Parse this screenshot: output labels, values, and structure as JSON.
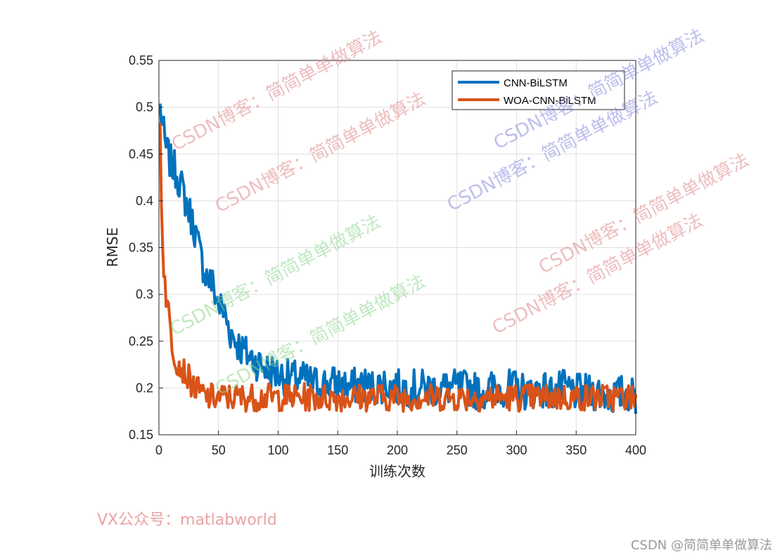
{
  "chart_data": {
    "type": "line",
    "xlabel": "训练次数",
    "ylabel": "RMSE",
    "xlim": [
      0,
      400
    ],
    "ylim": [
      0.15,
      0.55
    ],
    "xticks": [
      "0",
      "50",
      "100",
      "150",
      "200",
      "250",
      "300",
      "350",
      "400"
    ],
    "yticks": [
      "0.15",
      "0.2",
      "0.25",
      "0.3",
      "0.35",
      "0.4",
      "0.45",
      "0.5",
      "0.55"
    ],
    "grid": true,
    "legend_position": "top-right",
    "series": [
      {
        "name": "CNN-BiLSTM",
        "color": "#0072bd",
        "x": [
          1,
          5,
          10,
          15,
          20,
          25,
          30,
          35,
          40,
          45,
          50,
          55,
          60,
          65,
          70,
          75,
          80,
          90,
          100,
          110,
          120,
          130,
          140,
          150,
          160,
          170,
          180,
          190,
          200,
          210,
          220,
          230,
          240,
          250,
          260,
          270,
          280,
          290,
          300,
          310,
          320,
          330,
          340,
          350,
          360,
          370,
          380,
          390,
          400
        ],
        "y": [
          0.5,
          0.46,
          0.44,
          0.43,
          0.41,
          0.39,
          0.37,
          0.34,
          0.32,
          0.31,
          0.29,
          0.28,
          0.26,
          0.25,
          0.24,
          0.235,
          0.23,
          0.22,
          0.215,
          0.21,
          0.21,
          0.205,
          0.205,
          0.205,
          0.2,
          0.205,
          0.2,
          0.205,
          0.2,
          0.2,
          0.2,
          0.2,
          0.2,
          0.2,
          0.2,
          0.195,
          0.2,
          0.2,
          0.2,
          0.195,
          0.2,
          0.195,
          0.2,
          0.195,
          0.195,
          0.195,
          0.19,
          0.195,
          0.19
        ]
      },
      {
        "name": "WOA-CNN-BiLSTM",
        "color": "#d95319",
        "x": [
          1,
          2,
          4,
          6,
          8,
          10,
          12,
          15,
          20,
          25,
          30,
          35,
          40,
          50,
          60,
          70,
          80,
          90,
          100,
          120,
          140,
          160,
          180,
          200,
          220,
          240,
          260,
          280,
          300,
          320,
          340,
          360,
          380,
          400
        ],
        "y": [
          0.48,
          0.4,
          0.33,
          0.3,
          0.28,
          0.26,
          0.24,
          0.23,
          0.22,
          0.21,
          0.2,
          0.195,
          0.19,
          0.19,
          0.19,
          0.19,
          0.19,
          0.19,
          0.19,
          0.19,
          0.19,
          0.19,
          0.19,
          0.19,
          0.19,
          0.19,
          0.19,
          0.19,
          0.19,
          0.19,
          0.19,
          0.19,
          0.19,
          0.19
        ]
      }
    ]
  },
  "watermarks": [
    "CSDN博客：简简单单做算法"
  ],
  "footer_note": "VX公众号：matlabworld",
  "credit": "CSDN @简简单单做算法"
}
